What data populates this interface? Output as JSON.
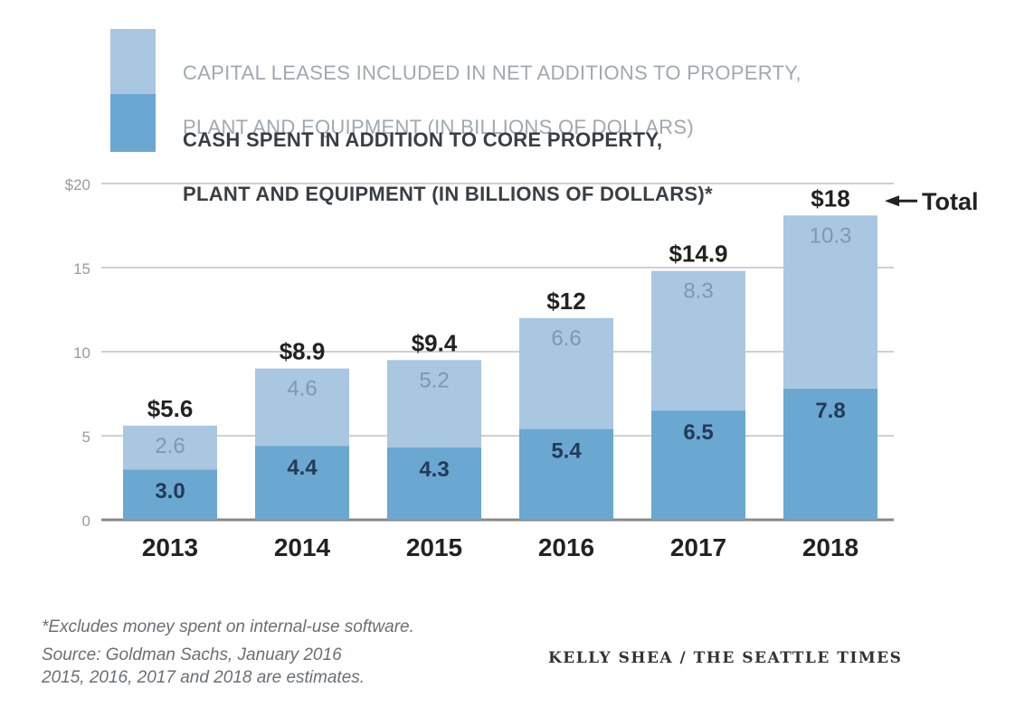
{
  "chart_data": {
    "type": "bar",
    "stacked": true,
    "categories": [
      "2013",
      "2014",
      "2015",
      "2016",
      "2017",
      "2018"
    ],
    "series": [
      {
        "name": "CASH SPENT IN ADDITION TO CORE PROPERTY, PLANT AND EQUIPMENT (IN BILLIONS OF DOLLARS)*",
        "values": [
          3.0,
          4.4,
          4.3,
          5.4,
          6.5,
          7.8
        ],
        "labels": [
          "3.0",
          "4.4",
          "4.3",
          "5.4",
          "6.5",
          "7.8"
        ]
      },
      {
        "name": "CAPITAL LEASES INCLUDED IN NET ADDITIONS TO PROPERTY, PLANT AND EQUIPMENT (IN BILLIONS OF DOLLARS)",
        "values": [
          2.6,
          4.6,
          5.2,
          6.6,
          8.3,
          10.3
        ],
        "labels": [
          "2.6",
          "4.6",
          "5.2",
          "6.6",
          "8.3",
          "10.3"
        ]
      }
    ],
    "totals": [
      5.6,
      8.9,
      9.4,
      12,
      14.9,
      18
    ],
    "total_labels": [
      "$5.6",
      "$8.9",
      "$9.4",
      "$12",
      "$14.9",
      "$18"
    ],
    "total_annotation": "Total",
    "ylim": [
      0,
      20
    ],
    "yticks": [
      0,
      5,
      10,
      15,
      20
    ],
    "ytick_labels": [
      "0",
      "5",
      "10",
      "15",
      "$20"
    ],
    "grid": true,
    "legend_position": "top"
  },
  "legend": {
    "leases_line1": "CAPITAL LEASES INCLUDED IN NET ADDITIONS TO PROPERTY,",
    "leases_line2": "PLANT AND EQUIPMENT (IN BILLIONS OF DOLLARS)",
    "cash_line1": "CASH SPENT IN ADDITION TO CORE PROPERTY,",
    "cash_line2": "PLANT AND EQUIPMENT (IN BILLIONS OF DOLLARS)*"
  },
  "footnotes": {
    "note1": "*Excludes money spent on internal-use software.",
    "note2": "2015, 2016, 2017 and 2018 are estimates.",
    "source": "Source: Goldman Sachs, January 2016",
    "credit": "KELLY SHEA / THE SEATTLE TIMES"
  },
  "colors": {
    "leases": "#a9c7e0",
    "cash": "#6aa7d1",
    "grid": "#d0d0d0",
    "axis": "#888888",
    "inner_label_light": "#7f98b0",
    "inner_label_dark": "#243a55",
    "text_dark": "#222222"
  }
}
